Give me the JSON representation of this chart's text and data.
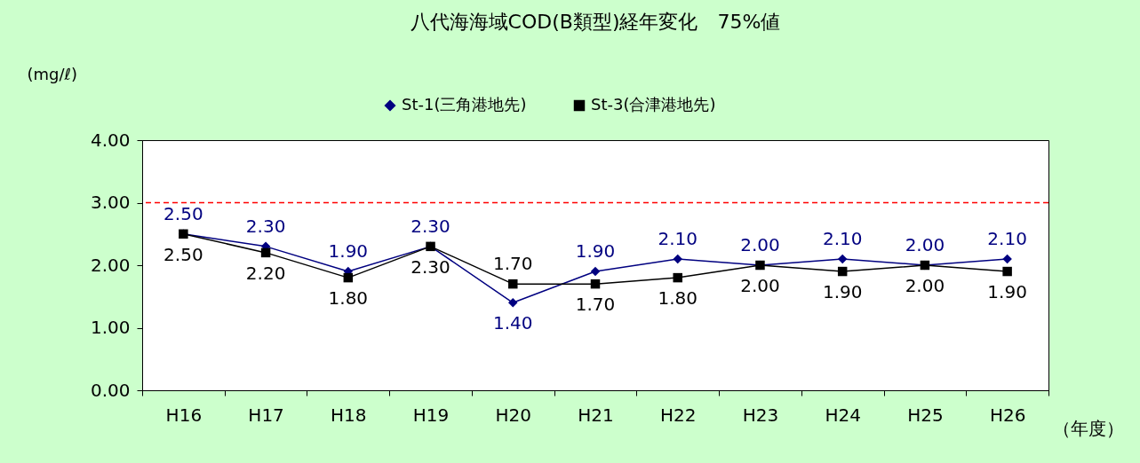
{
  "chart_data": {
    "type": "line",
    "title": "八代海海域COD(B類型)経年変化　75%値",
    "ylabel": "(mg/ℓ)",
    "xlabel": "（年度）",
    "categories": [
      "H16",
      "H17",
      "H18",
      "H19",
      "H20",
      "H21",
      "H22",
      "H23",
      "H24",
      "H25",
      "H26"
    ],
    "series": [
      {
        "name": "St-1(三角港地先)",
        "color": "#000080",
        "marker": "diamond",
        "values": [
          2.5,
          2.3,
          1.9,
          2.3,
          1.4,
          1.9,
          2.1,
          2.0,
          2.1,
          2.0,
          2.1
        ],
        "value_labels": [
          "2.50",
          "2.30",
          "1.90",
          "2.30",
          "1.40",
          "1.90",
          "2.10",
          "2.00",
          "2.10",
          "2.00",
          "2.10"
        ]
      },
      {
        "name": "St-3(合津港地先)",
        "color": "#000000",
        "marker": "square",
        "values": [
          2.5,
          2.2,
          1.8,
          2.3,
          1.7,
          1.7,
          1.8,
          2.0,
          1.9,
          2.0,
          1.9
        ],
        "value_labels": [
          "2.50",
          "2.20",
          "1.80",
          "2.30",
          "1.70",
          "1.70",
          "1.80",
          "2.00",
          "1.90",
          "2.00",
          "1.90"
        ]
      }
    ],
    "ylim": [
      0,
      4
    ],
    "yticks": [
      {
        "value": 0,
        "label": "0.00"
      },
      {
        "value": 1,
        "label": "1.00"
      },
      {
        "value": 2,
        "label": "2.00"
      },
      {
        "value": 3,
        "label": "3.00"
      },
      {
        "value": 4,
        "label": "4.00"
      }
    ],
    "ref_lines": [
      {
        "axis": "y",
        "value": 3,
        "color": "#ff0000",
        "line_style": "dashed"
      }
    ],
    "grid": false,
    "legend": "top",
    "line_style": "solid"
  }
}
